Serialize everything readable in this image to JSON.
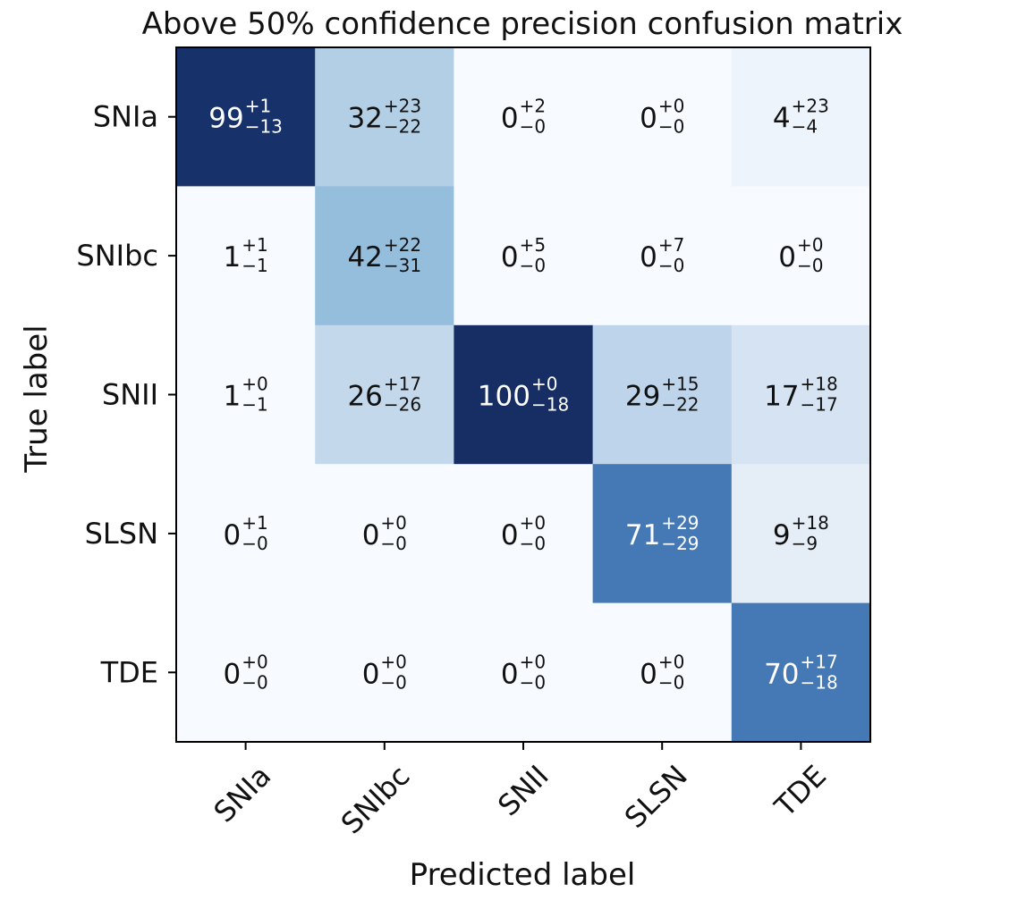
{
  "chart_data": {
    "type": "heatmap",
    "title": "Above 50% confidence precision confusion matrix",
    "xlabel": "Predicted label",
    "ylabel": "True label",
    "x_categories": [
      "SNIa",
      "SNIbc",
      "SNII",
      "SLSN",
      "TDE"
    ],
    "y_categories": [
      "SNIa",
      "SNIbc",
      "SNII",
      "SLSN",
      "TDE"
    ],
    "colormap": "Blues",
    "vmin": 0,
    "vmax": 100,
    "values": [
      [
        99,
        32,
        0,
        0,
        4
      ],
      [
        1,
        42,
        0,
        0,
        0
      ],
      [
        1,
        26,
        100,
        29,
        17
      ],
      [
        0,
        0,
        0,
        71,
        9
      ],
      [
        0,
        0,
        0,
        0,
        70
      ]
    ],
    "upper_errors": [
      [
        1,
        23,
        2,
        0,
        23
      ],
      [
        1,
        22,
        5,
        7,
        0
      ],
      [
        0,
        17,
        0,
        15,
        18
      ],
      [
        1,
        0,
        0,
        29,
        18
      ],
      [
        0,
        0,
        0,
        0,
        17
      ]
    ],
    "lower_errors": [
      [
        13,
        22,
        0,
        0,
        4
      ],
      [
        1,
        31,
        0,
        0,
        0
      ],
      [
        1,
        26,
        18,
        22,
        17
      ],
      [
        0,
        0,
        0,
        29,
        9
      ],
      [
        0,
        0,
        0,
        0,
        18
      ]
    ],
    "display_colors": [
      [
        "#17326a",
        "#b3cfe5",
        "#f7fbff",
        "#f7fbff",
        "#eef4fb"
      ],
      [
        "#f7fbff",
        "#95bedc",
        "#f7fbff",
        "#f7fbff",
        "#f7fbff"
      ],
      [
        "#f7fbff",
        "#c4d8ec",
        "#162e64",
        "#bdd4ea",
        "#d5e3f2"
      ],
      [
        "#f7fbff",
        "#f7fbff",
        "#f7fbff",
        "#4579b6",
        "#e5edf7"
      ],
      [
        "#f7fbff",
        "#f7fbff",
        "#f7fbff",
        "#f7fbff",
        "#4579b6"
      ]
    ],
    "text_color_dark": "#111111",
    "text_color_light": "#ffffff"
  }
}
